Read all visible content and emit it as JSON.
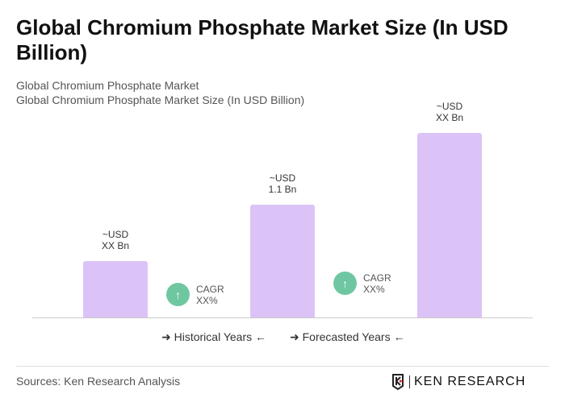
{
  "title": "Global Chromium Phosphate Market Size (In USD Billion)",
  "subtitle1": "Global Chromium Phosphate Market",
  "subtitle2": "Global Chromium Phosphate Market Size (In USD Billion)",
  "chart_data": {
    "type": "bar",
    "values": [
      0.55,
      1.1,
      1.8
    ],
    "data_labels": [
      [
        "~USD",
        "XX Bn"
      ],
      [
        "~USD",
        "1.1 Bn"
      ],
      [
        "~USD",
        "XX Bn"
      ]
    ],
    "bar_color": "#dcc3f7",
    "cagr": [
      {
        "label": "CAGR",
        "value": "XX%"
      },
      {
        "label": "CAGR",
        "value": "XX%"
      }
    ],
    "legend": [
      "Historical Years",
      "Forecasted Years"
    ]
  },
  "cagr_color": "#6fc7a1",
  "source": "Sources: Ken Research Analysis",
  "logo_text": "KEN RESEARCH"
}
